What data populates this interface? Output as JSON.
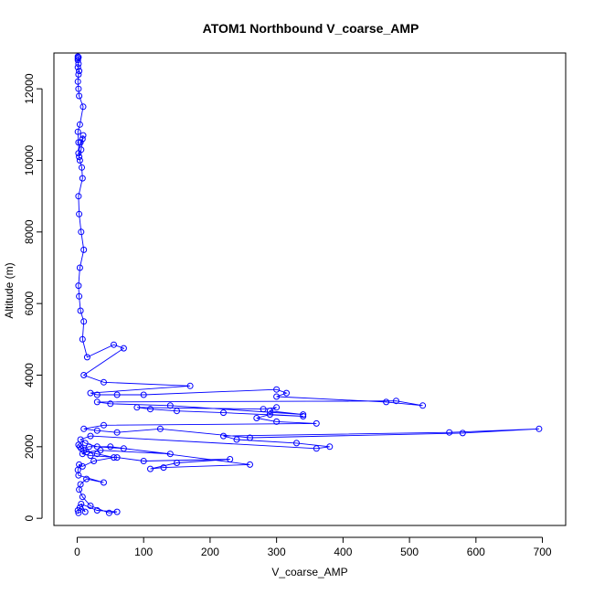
{
  "chart_data": {
    "type": "scatter",
    "title": "ATOM1 Northbound V_coarse_AMP",
    "xlabel": "V_coarse_AMP",
    "ylabel": "Altitude (m)",
    "xlim": [
      -35,
      735
    ],
    "ylim": [
      -200,
      13000
    ],
    "xticks": [
      0,
      100,
      200,
      300,
      400,
      500,
      600,
      700
    ],
    "yticks": [
      0,
      2000,
      4000,
      6000,
      8000,
      10000,
      12000
    ],
    "line_style": "points-connected",
    "marker": "open-circle",
    "series_color": "#0000ff",
    "series": [
      {
        "x": [
          2,
          1,
          4,
          12,
          6,
          30,
          60,
          48,
          20,
          8,
          3,
          5,
          14,
          40,
          2,
          1,
          3,
          8,
          25,
          55,
          30,
          10,
          4,
          2,
          6,
          18,
          50,
          260,
          130,
          110,
          150,
          230,
          100,
          60,
          20,
          8,
          14,
          35,
          140,
          70,
          30,
          12,
          5,
          20,
          360,
          380,
          330,
          240,
          220,
          560,
          695,
          580,
          260,
          125,
          60,
          30,
          10,
          40,
          360,
          300,
          270,
          290,
          340,
          220,
          150,
          110,
          90,
          280,
          300,
          290,
          340,
          140,
          50,
          30,
          480,
          520,
          465,
          300,
          315,
          300,
          100,
          60,
          30,
          20,
          170,
          40,
          10,
          70,
          55,
          15,
          8,
          10,
          5,
          3,
          2,
          4,
          10,
          6,
          3,
          2,
          8,
          7,
          4,
          2,
          5,
          8,
          9,
          6,
          3,
          2,
          1,
          4,
          9,
          3,
          2,
          1,
          2,
          3,
          1,
          2,
          1,
          1,
          2,
          1
        ],
        "y": [
          150,
          220,
          300,
          180,
          400,
          220,
          180,
          150,
          350,
          600,
          800,
          950,
          1100,
          1000,
          1200,
          1350,
          1500,
          1450,
          1600,
          1700,
          1800,
          1900,
          2000,
          2050,
          1950,
          2000,
          2000,
          1500,
          1420,
          1380,
          1550,
          1650,
          1600,
          1700,
          1750,
          1800,
          1850,
          1900,
          1800,
          1950,
          2000,
          2100,
          2200,
          2300,
          1950,
          2000,
          2100,
          2200,
          2300,
          2400,
          2500,
          2380,
          2250,
          2500,
          2400,
          2450,
          2500,
          2600,
          2650,
          2700,
          2800,
          2900,
          2850,
          2950,
          3000,
          3050,
          3100,
          3050,
          3100,
          3000,
          2900,
          3150,
          3200,
          3250,
          3280,
          3150,
          3250,
          3400,
          3500,
          3600,
          3450,
          3450,
          3450,
          3500,
          3700,
          3800,
          4000,
          4750,
          4850,
          4500,
          5000,
          5500,
          5800,
          6200,
          6500,
          7000,
          7500,
          8000,
          8500,
          9000,
          9500,
          9800,
          10000,
          10200,
          10500,
          10600,
          10700,
          10300,
          10100,
          10500,
          10800,
          11000,
          11500,
          11800,
          12000,
          12200,
          12400,
          12500,
          12600,
          12700,
          12800,
          12850,
          12880,
          12900
        ]
      }
    ]
  }
}
